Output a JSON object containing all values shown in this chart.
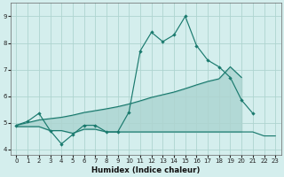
{
  "xlabel": "Humidex (Indice chaleur)",
  "line_color": "#1a7a6e",
  "bg_color": "#d4eeed",
  "grid_color": "#aed4d0",
  "ylim": [
    3.8,
    9.5
  ],
  "xlim": [
    -0.5,
    23.5
  ],
  "yticks": [
    4,
    5,
    6,
    7,
    8,
    9
  ],
  "xticks": [
    0,
    1,
    2,
    3,
    4,
    5,
    6,
    7,
    8,
    9,
    10,
    11,
    12,
    13,
    14,
    15,
    16,
    17,
    18,
    19,
    20,
    21,
    22,
    23
  ],
  "top_x": [
    0,
    1,
    2,
    3,
    4,
    5,
    6,
    7,
    8,
    9,
    10,
    11,
    12,
    13,
    14,
    15,
    16,
    17,
    18,
    19,
    20,
    21,
    22
  ],
  "top_y": [
    4.9,
    5.05,
    5.35,
    4.7,
    4.2,
    4.55,
    4.9,
    4.9,
    4.65,
    4.65,
    5.4,
    7.7,
    8.4,
    8.05,
    8.3,
    9.0,
    7.9,
    7.35,
    7.1,
    6.7,
    5.85,
    5.35,
    null
  ],
  "mid_x": [
    0,
    1,
    2,
    3,
    4,
    5,
    6,
    7,
    8,
    9,
    10,
    11,
    12,
    13,
    14,
    15,
    16,
    17,
    18,
    19,
    20
  ],
  "mid_y": [
    4.9,
    5.0,
    5.1,
    5.15,
    5.2,
    5.28,
    5.38,
    5.45,
    5.52,
    5.6,
    5.7,
    5.82,
    5.95,
    6.05,
    6.15,
    6.28,
    6.42,
    6.55,
    6.65,
    7.1,
    6.7
  ],
  "bot_x": [
    0,
    1,
    2,
    3,
    4,
    5,
    6,
    7,
    8,
    9,
    10,
    11,
    12,
    13,
    14,
    15,
    16,
    17,
    18,
    19,
    20,
    21,
    22,
    23
  ],
  "bot_y": [
    4.85,
    4.85,
    4.85,
    4.7,
    4.7,
    4.6,
    4.75,
    4.75,
    4.65,
    4.65,
    4.65,
    4.65,
    4.65,
    4.65,
    4.65,
    4.65,
    4.65,
    4.65,
    4.65,
    4.65,
    4.65,
    4.65,
    4.5,
    4.5
  ]
}
